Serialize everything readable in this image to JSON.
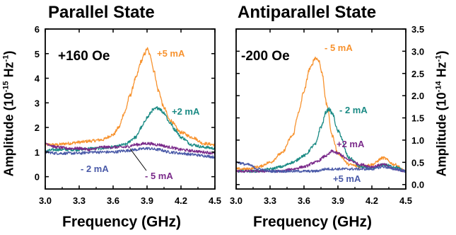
{
  "chart_data": [
    {
      "type": "line",
      "title": "Parallel State",
      "field_label": "+160 Oe",
      "xlabel": "Frequency (GHz)",
      "ylabel": "Amplitude (10-15 Hz-1)",
      "ylabel_parts": {
        "pre": "Amplitude (10",
        "exp1": "-15",
        "mid": " Hz",
        "exp2": "-1",
        "post": ")"
      },
      "xlim": [
        3.0,
        4.5
      ],
      "ylim": [
        -0.5,
        6
      ],
      "xticks": [
        "3.0",
        "3.3",
        "3.6",
        "3.9",
        "4.2",
        "4.5"
      ],
      "yticks": [
        "0",
        "1",
        "2",
        "3",
        "4",
        "5",
        "6"
      ],
      "grid": false,
      "series": [
        {
          "name": "+5 mA",
          "color": "#f7922e",
          "x": [
            3.0,
            3.1,
            3.2,
            3.3,
            3.4,
            3.5,
            3.6,
            3.65,
            3.7,
            3.75,
            3.8,
            3.85,
            3.88,
            3.9,
            3.93,
            3.96,
            4.0,
            4.05,
            4.1,
            4.2,
            4.3,
            4.4,
            4.5
          ],
          "y": [
            1.3,
            1.3,
            1.35,
            1.4,
            1.45,
            1.5,
            1.7,
            2.0,
            2.6,
            3.3,
            4.0,
            4.7,
            5.0,
            5.2,
            4.9,
            4.3,
            3.5,
            2.8,
            2.3,
            1.8,
            1.6,
            1.35,
            1.3
          ]
        },
        {
          "name": "+2 mA",
          "color": "#1a8a84",
          "x": [
            3.0,
            3.1,
            3.2,
            3.3,
            3.4,
            3.5,
            3.6,
            3.7,
            3.8,
            3.85,
            3.9,
            3.95,
            4.0,
            4.05,
            4.1,
            4.15,
            4.2,
            4.3,
            4.4,
            4.5
          ],
          "y": [
            1.05,
            1.1,
            1.1,
            1.1,
            1.15,
            1.15,
            1.2,
            1.3,
            1.6,
            2.0,
            2.4,
            2.7,
            2.8,
            2.6,
            2.2,
            1.9,
            1.6,
            1.3,
            1.2,
            1.15
          ]
        },
        {
          "name": "- 2 mA",
          "color": "#4a5aa8",
          "x": [
            3.0,
            3.1,
            3.2,
            3.3,
            3.4,
            3.5,
            3.6,
            3.7,
            3.8,
            3.9,
            4.0,
            4.1,
            4.2,
            4.3,
            4.4,
            4.5
          ],
          "y": [
            1.0,
            0.95,
            0.95,
            0.95,
            1.0,
            1.0,
            1.0,
            1.05,
            1.1,
            1.15,
            1.1,
            1.0,
            0.95,
            0.9,
            0.85,
            0.8
          ]
        },
        {
          "name": "- 5 mA",
          "color": "#7a2a8a",
          "x": [
            3.0,
            3.1,
            3.2,
            3.3,
            3.4,
            3.5,
            3.6,
            3.7,
            3.8,
            3.9,
            4.0,
            4.1,
            4.2,
            4.3,
            4.4,
            4.5
          ],
          "y": [
            1.35,
            1.2,
            1.15,
            1.15,
            1.1,
            1.2,
            1.2,
            1.2,
            1.3,
            1.35,
            1.3,
            1.2,
            1.1,
            1.05,
            1.0,
            0.95
          ]
        }
      ]
    },
    {
      "type": "line",
      "title": "Antiparallel State",
      "field_label": "-200 Oe",
      "xlabel": "Frequency (GHz)",
      "ylabel": "Amplitude (10-14 Hz-1)",
      "ylabel_parts": {
        "pre": "Amplitude (10",
        "exp1": "-14",
        "mid": " Hz",
        "exp2": "-1",
        "post": ")"
      },
      "xlim": [
        3.0,
        4.5
      ],
      "ylim": [
        -0.1,
        3.5
      ],
      "xticks": [
        "3.0",
        "3.3",
        "3.6",
        "3.9",
        "4.2",
        "4.5"
      ],
      "yticks": [
        "0.0",
        "0.5",
        "1.0",
        "1.5",
        "2.0",
        "2.5",
        "3.0",
        "3.5"
      ],
      "grid": false,
      "series": [
        {
          "name": "- 5 mA",
          "color": "#f7922e",
          "x": [
            3.0,
            3.1,
            3.2,
            3.3,
            3.4,
            3.5,
            3.55,
            3.6,
            3.65,
            3.7,
            3.73,
            3.76,
            3.8,
            3.85,
            3.9,
            4.0,
            4.1,
            4.2,
            4.3,
            4.4,
            4.5
          ],
          "y": [
            0.35,
            0.35,
            0.4,
            0.5,
            0.7,
            1.1,
            1.6,
            2.1,
            2.6,
            2.85,
            2.8,
            2.5,
            1.8,
            1.1,
            0.7,
            0.45,
            0.4,
            0.45,
            0.6,
            0.45,
            0.3
          ]
        },
        {
          "name": "- 2 mA",
          "color": "#1a8a84",
          "x": [
            3.0,
            3.1,
            3.2,
            3.3,
            3.4,
            3.5,
            3.6,
            3.7,
            3.75,
            3.8,
            3.82,
            3.85,
            3.9,
            4.0,
            4.1,
            4.2,
            4.3,
            4.4,
            4.5
          ],
          "y": [
            0.3,
            0.3,
            0.3,
            0.35,
            0.4,
            0.5,
            0.65,
            0.9,
            1.3,
            1.65,
            1.7,
            1.6,
            1.2,
            0.6,
            0.4,
            0.35,
            0.45,
            0.4,
            0.3
          ]
        },
        {
          "name": "+2 mA",
          "color": "#7a2a8a",
          "x": [
            3.0,
            3.1,
            3.2,
            3.3,
            3.4,
            3.5,
            3.6,
            3.7,
            3.8,
            3.85,
            3.9,
            4.0,
            4.1,
            4.2,
            4.3,
            4.4,
            4.5
          ],
          "y": [
            0.3,
            0.3,
            0.3,
            0.3,
            0.3,
            0.35,
            0.4,
            0.5,
            0.65,
            0.75,
            0.7,
            0.55,
            0.45,
            0.4,
            0.45,
            0.35,
            0.3
          ]
        },
        {
          "name": "+5 mA",
          "color": "#4a5aa8",
          "x": [
            3.0,
            3.1,
            3.2,
            3.3,
            3.4,
            3.5,
            3.6,
            3.7,
            3.8,
            3.9,
            4.0,
            4.1,
            4.2,
            4.3,
            4.4,
            4.5
          ],
          "y": [
            0.5,
            0.45,
            0.35,
            0.3,
            0.3,
            0.3,
            0.3,
            0.3,
            0.35,
            0.35,
            0.35,
            0.35,
            0.35,
            0.4,
            0.35,
            0.3
          ]
        }
      ]
    }
  ]
}
